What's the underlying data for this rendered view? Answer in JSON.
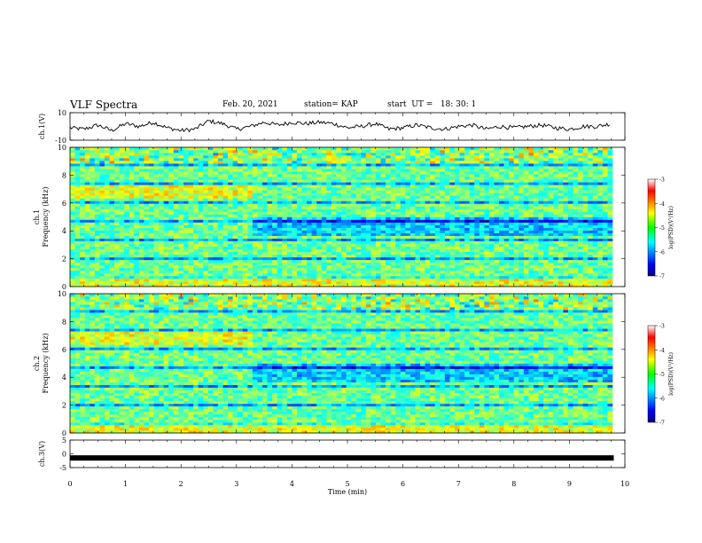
{
  "header": {
    "title": "VLF Spectra",
    "date": "Feb. 20, 2021",
    "station": "station= KAP",
    "start": "start  UT =   18: 30: 1"
  },
  "chart_data": [
    {
      "type": "line",
      "ylabel": "ch.1(V)",
      "ylim": [
        -10,
        10
      ],
      "yticks": [
        "10",
        "-10"
      ],
      "xlim": [
        0,
        10
      ],
      "color": "#000000",
      "x": [
        0,
        0.25,
        0.5,
        0.75,
        1,
        1.25,
        1.5,
        1.75,
        2,
        2.25,
        2.5,
        2.75,
        3,
        3.25,
        3.5,
        3.75,
        4,
        4.25,
        4.5,
        4.75,
        5,
        5.25,
        5.5,
        5.75,
        6,
        6.25,
        6.5,
        6.75,
        7,
        7.25,
        7.5,
        7.75,
        8,
        8.25,
        8.5,
        8.75,
        9,
        9.25,
        9.5,
        9.75
      ],
      "y": [
        -1,
        -2,
        1,
        -3,
        2,
        0,
        3,
        -1,
        -3,
        -2,
        4,
        2,
        -2,
        0,
        3,
        1,
        3,
        2,
        3,
        2,
        -1,
        0,
        2,
        -2,
        -1,
        1,
        -1,
        -2,
        0,
        1,
        -2,
        0,
        -1,
        0,
        1,
        -1,
        -2,
        0,
        0,
        2
      ]
    },
    {
      "type": "heatmap",
      "ylabel": "ch.1\nFrequency  (kHz)",
      "ylim": [
        0,
        10
      ],
      "yticks": [
        "0",
        "2",
        "4",
        "6",
        "8",
        "10"
      ],
      "xlim": [
        0,
        10
      ],
      "colorbar": {
        "label": "log(PSD)(V²/Hz)",
        "range": [
          -7,
          -3
        ],
        "ticks": [
          "-3",
          "-4",
          "-5",
          "-6",
          "-7"
        ]
      }
    },
    {
      "type": "heatmap",
      "ylabel": "ch.2\nFrequency  (kHz)",
      "ylim": [
        0,
        10
      ],
      "yticks": [
        "0",
        "2",
        "4",
        "6",
        "8",
        "10"
      ],
      "xlim": [
        0,
        10
      ],
      "colorbar": {
        "label": "log(PSD)(V²/Hz)",
        "range": [
          -7,
          -3
        ],
        "ticks": [
          "-3",
          "-4",
          "-5",
          "-6",
          "-7"
        ]
      }
    },
    {
      "type": "line",
      "ylabel": "ch.3(V)",
      "ylim": [
        -5,
        5
      ],
      "yticks": [
        "5",
        "0",
        "-5"
      ],
      "xlim": [
        0,
        10
      ],
      "xlabel": "Time  (min)",
      "xticks": [
        "0",
        "1",
        "2",
        "3",
        "4",
        "5",
        "6",
        "7",
        "8",
        "9",
        "10"
      ],
      "color": "#000000",
      "x": [
        0,
        9.8
      ],
      "y": [
        -1.5,
        -1.5
      ]
    }
  ],
  "icons": [
    "colorbar-jet"
  ]
}
